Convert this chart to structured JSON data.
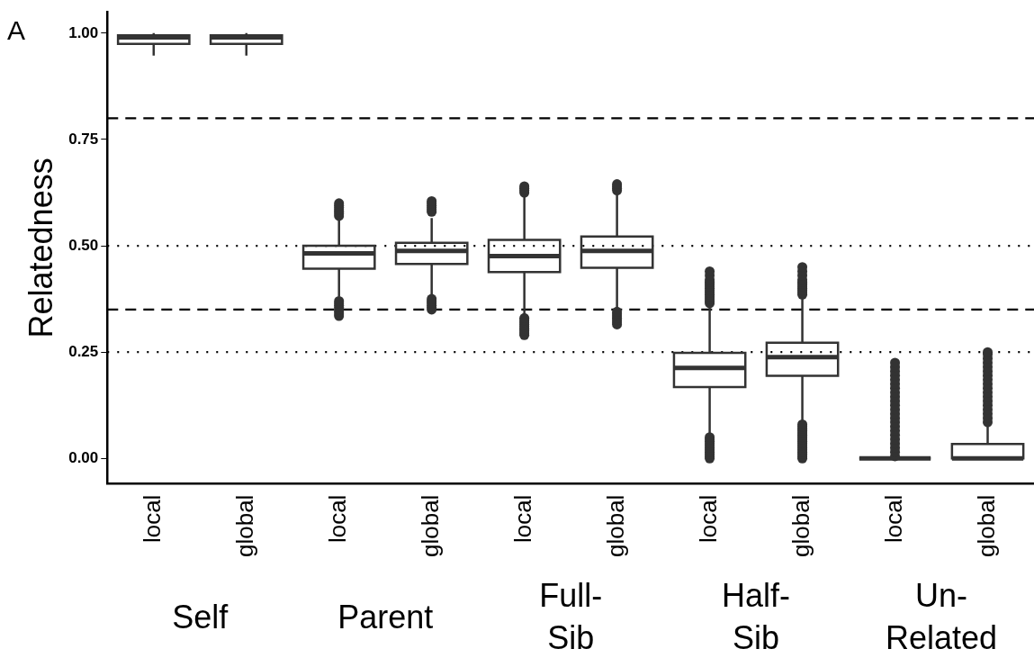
{
  "chart_data": {
    "type": "box",
    "title": "A",
    "ylabel": "Relatedness",
    "categories": [
      "local",
      "global",
      "local",
      "global",
      "local",
      "global",
      "local",
      "global",
      "local",
      "global"
    ],
    "boxes": [
      {
        "low": 0.947,
        "q1": 0.975,
        "median": 0.99,
        "q3": 0.995,
        "high": 1.0
      },
      {
        "low": 0.947,
        "q1": 0.975,
        "median": 0.99,
        "q3": 0.995,
        "high": 1.0
      },
      {
        "low": 0.38,
        "q1": 0.446,
        "median": 0.482,
        "q3": 0.5,
        "high": 0.565,
        "outliers": [
          0.335,
          0.34,
          0.345,
          0.35,
          0.355,
          0.36,
          0.365,
          0.37,
          0.57,
          0.575,
          0.58,
          0.585,
          0.59,
          0.595,
          0.6
        ]
      },
      {
        "low": 0.385,
        "q1": 0.457,
        "median": 0.488,
        "q3": 0.507,
        "high": 0.565,
        "outliers": [
          0.35,
          0.355,
          0.36,
          0.365,
          0.37,
          0.375,
          0.58,
          0.585,
          0.59,
          0.595,
          0.6,
          0.605
        ]
      },
      {
        "low": 0.337,
        "q1": 0.438,
        "median": 0.476,
        "q3": 0.514,
        "high": 0.62,
        "outliers": [
          0.29,
          0.295,
          0.3,
          0.305,
          0.31,
          0.315,
          0.32,
          0.325,
          0.33,
          0.625,
          0.63,
          0.635,
          0.64
        ]
      },
      {
        "low": 0.35,
        "q1": 0.448,
        "median": 0.488,
        "q3": 0.522,
        "high": 0.625,
        "outliers": [
          0.315,
          0.32,
          0.325,
          0.33,
          0.335,
          0.34,
          0.345,
          0.63,
          0.635,
          0.64,
          0.645
        ]
      },
      {
        "low": 0.055,
        "q1": 0.168,
        "median": 0.213,
        "q3": 0.248,
        "high": 0.36,
        "outliers": [
          0.0,
          0.005,
          0.01,
          0.015,
          0.02,
          0.025,
          0.03,
          0.035,
          0.04,
          0.045,
          0.05,
          0.365,
          0.37,
          0.375,
          0.38,
          0.385,
          0.39,
          0.395,
          0.4,
          0.405,
          0.41,
          0.415,
          0.42,
          0.43,
          0.44
        ]
      },
      {
        "low": 0.086,
        "q1": 0.194,
        "median": 0.238,
        "q3": 0.272,
        "high": 0.379,
        "outliers": [
          0.0,
          0.005,
          0.01,
          0.015,
          0.02,
          0.025,
          0.03,
          0.035,
          0.04,
          0.045,
          0.05,
          0.055,
          0.06,
          0.065,
          0.07,
          0.075,
          0.08,
          0.385,
          0.39,
          0.395,
          0.4,
          0.405,
          0.41,
          0.415,
          0.42,
          0.43,
          0.44,
          0.45
        ]
      },
      {
        "low": 0.0,
        "q1": 0.0,
        "median": 0.0,
        "q3": 0.0,
        "high": 0.0,
        "outliers": [
          0.005,
          0.015,
          0.025,
          0.035,
          0.045,
          0.055,
          0.065,
          0.075,
          0.085,
          0.095,
          0.105,
          0.115,
          0.125,
          0.135,
          0.145,
          0.155,
          0.165,
          0.175,
          0.185,
          0.195,
          0.205,
          0.215,
          0.225
        ]
      },
      {
        "low": 0.0,
        "q1": 0.0,
        "median": 0.0,
        "q3": 0.034,
        "high": 0.077,
        "outliers": [
          0.085,
          0.095,
          0.105,
          0.115,
          0.125,
          0.135,
          0.145,
          0.155,
          0.165,
          0.175,
          0.185,
          0.195,
          0.205,
          0.215,
          0.225,
          0.235,
          0.245,
          0.25
        ]
      }
    ],
    "color": "#333333",
    "ylim": [
      -0.06,
      1.05
    ],
    "yticks": [
      {
        "value": 0,
        "label": "0.00"
      },
      {
        "value": 0.25,
        "label": "0.25"
      },
      {
        "value": 0.5,
        "label": "0.50"
      },
      {
        "value": 0.75,
        "label": "0.75"
      },
      {
        "value": 1,
        "label": "1.00"
      }
    ],
    "ref_lines": [
      {
        "axis": "y",
        "value": 0.8,
        "line_style": "dashed"
      },
      {
        "axis": "y",
        "value": 0.35,
        "line_style": "dashed"
      },
      {
        "axis": "y",
        "value": 0.5,
        "line_style": "dotted"
      },
      {
        "axis": "y",
        "value": 0.25,
        "line_style": "dotted"
      }
    ],
    "annotations": [
      "Self",
      "Parent",
      "Full-\nSib",
      "Half-\nSib",
      "Un-\nRelated"
    ],
    "grid": false,
    "legend": false
  }
}
